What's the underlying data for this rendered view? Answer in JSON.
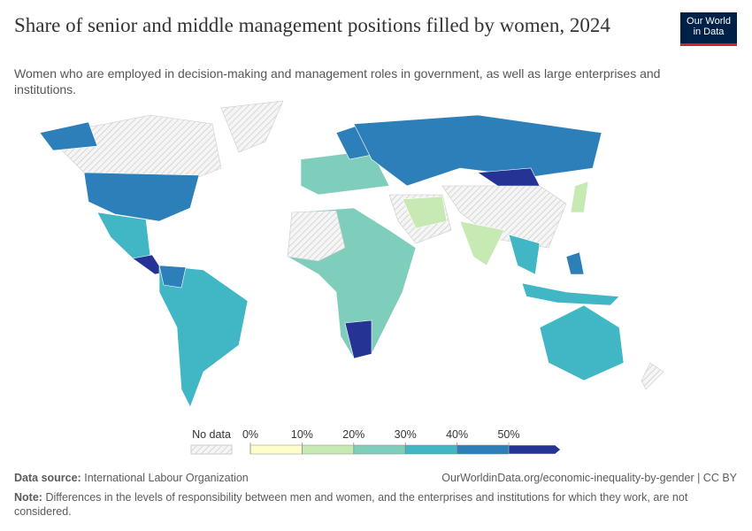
{
  "header": {
    "title": "Share of senior and middle management positions filled by women, 2024",
    "subtitle": "Women who are employed in decision-making and management roles in government, as well as large enterprises and institutions.",
    "logo": [
      "Our World",
      "in Data"
    ]
  },
  "legend": {
    "no_data": "No data",
    "ticks": [
      {
        "value": 0,
        "label": "0%"
      },
      {
        "value": 10,
        "label": "10%"
      },
      {
        "value": 20,
        "label": "20%"
      },
      {
        "value": 30,
        "label": "30%"
      },
      {
        "value": 40,
        "label": "40%"
      },
      {
        "value": 50,
        "label": "50%"
      }
    ],
    "colors": [
      "#ffffcc",
      "#c7e9b4",
      "#7fcdbb",
      "#41b6c4",
      "#2c7fb8",
      "#253494"
    ]
  },
  "footer": {
    "source_label": "Data source:",
    "source": "International Labour Organization",
    "url": "OurWorldinData.org/economic-inequality-by-gender | CC BY",
    "note_label": "Note:",
    "note": "Differences in the levels of responsibility between men and women, and the enterprises and institutions for which they work, are not considered."
  }
}
